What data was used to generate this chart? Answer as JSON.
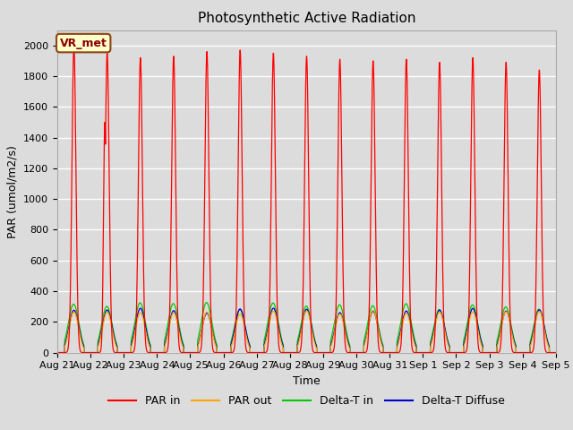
{
  "title": "Photosynthetic Active Radiation",
  "ylabel": "PAR (umol/m2/s)",
  "xlabel": "Time",
  "annotation": "VR_met",
  "bg_color": "#dcdcdc",
  "plot_bg_color": "#dcdcdc",
  "x_tick_labels": [
    "Aug 21",
    "Aug 22",
    "Aug 23",
    "Aug 24",
    "Aug 25",
    "Aug 26",
    "Aug 27",
    "Aug 28",
    "Aug 29",
    "Aug 30",
    "Aug 31",
    "Sep 1",
    "Sep 2",
    "Sep 3",
    "Sep 4",
    "Sep 5"
  ],
  "ylim": [
    0,
    2100
  ],
  "yticks": [
    0,
    200,
    400,
    600,
    800,
    1000,
    1200,
    1400,
    1600,
    1800,
    2000
  ],
  "legend_labels": [
    "PAR in",
    "PAR out",
    "Delta-T in",
    "Delta-T Diffuse"
  ],
  "legend_colors": [
    "#ff0000",
    "#ffa500",
    "#00cc00",
    "#0000cd"
  ],
  "par_in_peaks": [
    2000,
    1950,
    1920,
    1930,
    1960,
    1970,
    1950,
    1930,
    1910,
    1900,
    1910,
    1890,
    1920,
    1890,
    1840
  ],
  "title_fontsize": 11,
  "label_fontsize": 9,
  "tick_fontsize": 8
}
